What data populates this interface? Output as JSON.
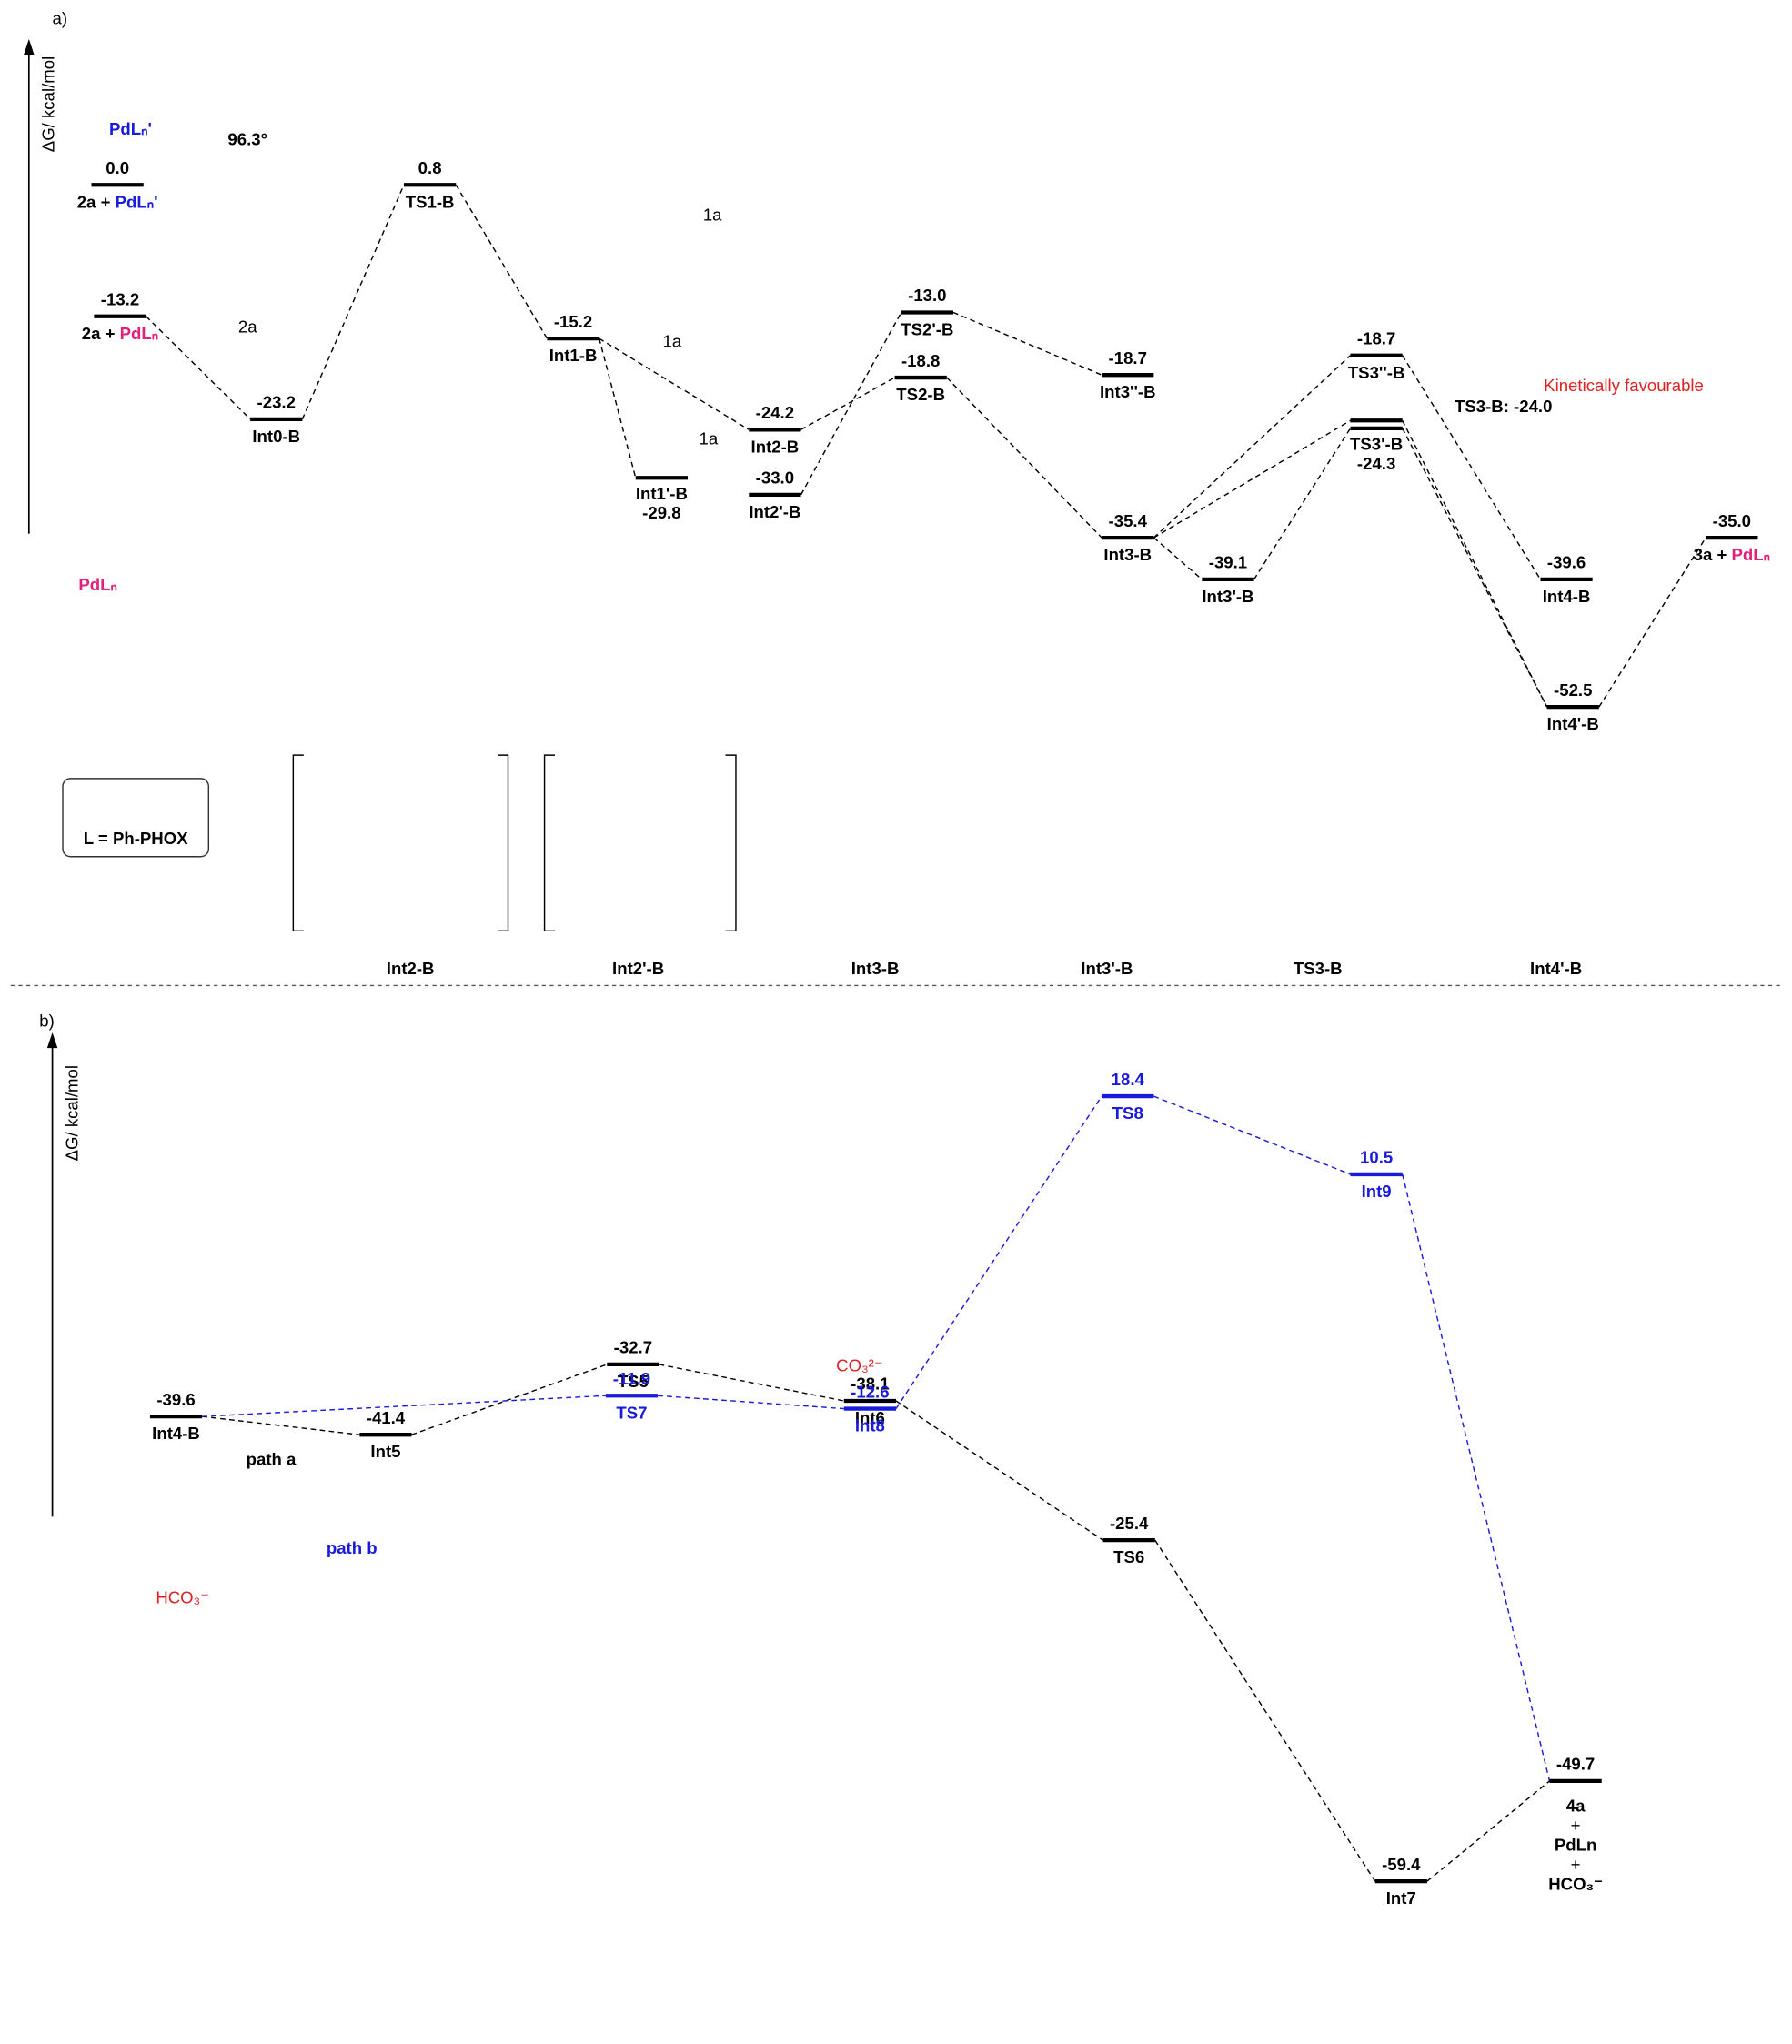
{
  "panel_a": {
    "label": "a)",
    "y_axis": "ΔG/ kcal/mol",
    "levels": [
      {
        "value": "0.0",
        "name": "2a + ",
        "partner": "PdLₙ'",
        "partner_color": "#1a1adb"
      },
      {
        "value": "0.8",
        "name": "TS1-B"
      },
      {
        "value": "-13.2",
        "name": "2a + ",
        "partner": "PdLₙ",
        "partner_color": "#e0207a"
      },
      {
        "value": "-15.2",
        "name": "Int1-B"
      },
      {
        "value": "-23.2",
        "name": "Int0-B"
      },
      {
        "value": "-24.2",
        "name": "Int2-B"
      },
      {
        "value": "-29.8",
        "name": "Int1'-B"
      },
      {
        "value": "-33.0",
        "name": "Int2'-B"
      },
      {
        "value": "-13.0",
        "name": "TS2'-B"
      },
      {
        "value": "-18.8",
        "name": "TS2-B"
      },
      {
        "value": "-18.7",
        "name": "Int3''-B"
      },
      {
        "value": "-35.4",
        "name": "Int3-B"
      },
      {
        "value": "-39.1",
        "name": "Int3'-B"
      },
      {
        "value": "-18.7",
        "name": "TS3''-B"
      },
      {
        "label": "TS3-B: -24.0"
      },
      {
        "value": "-24.3",
        "name": "TS3'-B"
      },
      {
        "value": "-39.6",
        "name": "Int4-B"
      },
      {
        "value": "-52.5",
        "name": "Int4'-B"
      },
      {
        "value": "-35.0",
        "name": "3a + ",
        "partner": "PdLₙ",
        "partner_color": "#e0207a"
      }
    ],
    "annotations": [
      {
        "text": "Kinetically favourable",
        "color": "#e02020"
      },
      {
        "text": "1a"
      },
      {
        "text": "1a"
      },
      {
        "text": "2a"
      },
      {
        "text": "1a"
      },
      {
        "text": "PdLₙ'",
        "color": "#1a1adb"
      },
      {
        "text": "PdLₙ",
        "color": "#e0207a"
      },
      {
        "text": "96.3°"
      }
    ],
    "ligand_box": "L = Ph-PHOX",
    "structure_names": [
      "Int2-B",
      "Int2'-B",
      "Int3-B",
      "Int3'-B",
      "TS3-B",
      "Int4'-B"
    ]
  },
  "panel_b": {
    "label": "b)",
    "y_axis": "ΔG/ kcal/mol",
    "levels": [
      {
        "value": "-39.6",
        "name": "Int4-B"
      },
      {
        "value": "-41.4",
        "name": "Int5"
      },
      {
        "value": "-32.7",
        "name": "TS5"
      },
      {
        "value": "-38.1",
        "name": "Int6"
      },
      {
        "value": "-25.4",
        "name": "TS6"
      },
      {
        "value": "-59.4",
        "name": "Int7"
      },
      {
        "value": "-49.7",
        "lines": [
          "4a",
          "+",
          "PdLn",
          "+",
          "HCO₃⁻"
        ]
      },
      {
        "value": "-11.9",
        "name": "TS7",
        "color": "#1a1adb"
      },
      {
        "value": "-12.6",
        "name": "Int8",
        "color": "#1a1adb"
      },
      {
        "value": "18.4",
        "name": "TS8",
        "color": "#1a1adb"
      },
      {
        "value": "10.5",
        "name": "Int9",
        "color": "#1a1adb"
      }
    ],
    "annotations": [
      {
        "text": "path b",
        "color": "#1a1adb"
      },
      {
        "text": "path a"
      },
      {
        "text": "HCO₃⁻",
        "color": "#e02020"
      },
      {
        "text": "CO₃²⁻",
        "color": "#e02020"
      }
    ]
  }
}
